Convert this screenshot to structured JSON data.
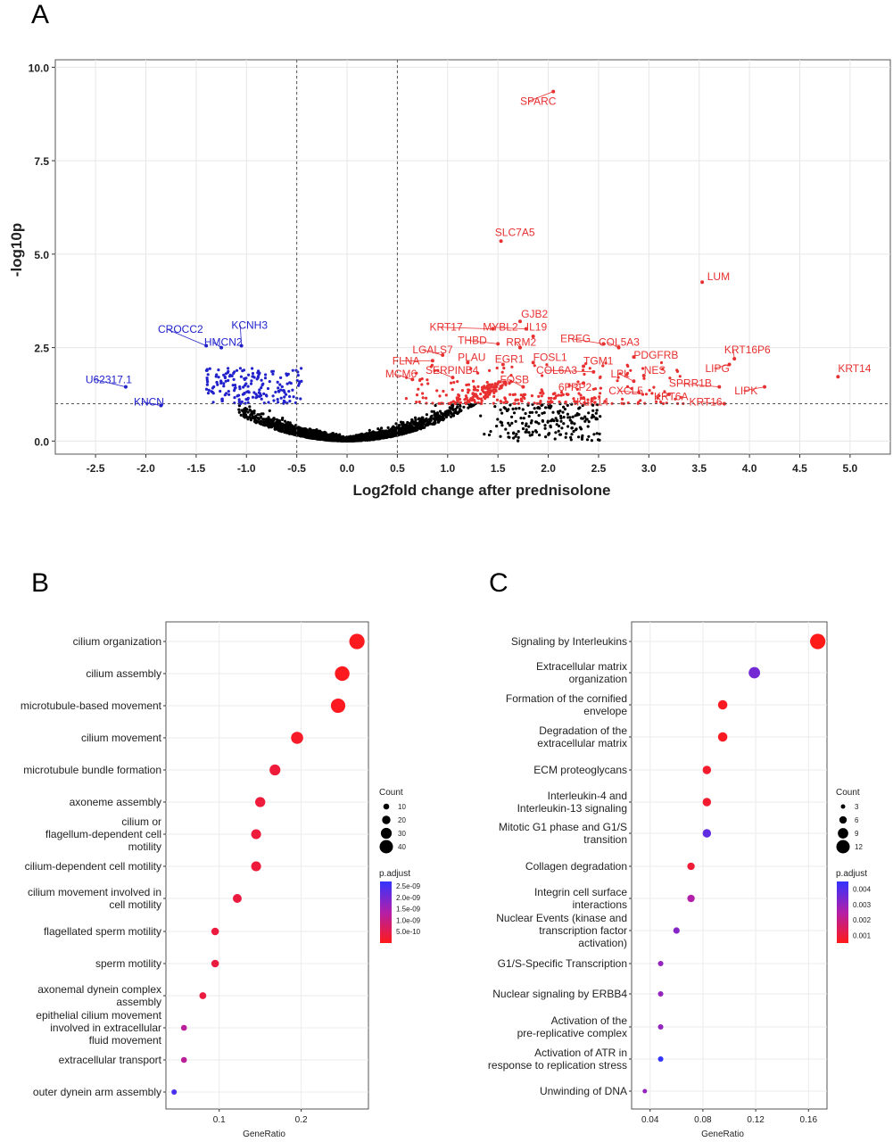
{
  "panels": [
    {
      "id": "A",
      "letter": "A"
    },
    {
      "id": "B",
      "letter": "B"
    },
    {
      "id": "C",
      "letter": "C"
    }
  ],
  "chart_data": [
    {
      "panel": "A",
      "type": "scatter",
      "title": "",
      "xlabel": "Log2fold change after prednisolone",
      "ylabel": "-log10p",
      "xlim": [
        -2.9,
        5.4
      ],
      "ylim": [
        -0.35,
        10.2
      ],
      "x_ticks": [
        "-2.5",
        "-2.0",
        "-1.5",
        "-1.0",
        "-0.5",
        "0.0",
        "0.5",
        "1.0",
        "1.5",
        "2.0",
        "2.5",
        "3.0",
        "3.5",
        "4.0",
        "4.5",
        "5.0"
      ],
      "y_ticks": [
        "0.0",
        "2.5",
        "5.0",
        "7.5",
        "10.0"
      ],
      "thresholds": {
        "x": [
          -0.5,
          0.5
        ],
        "y": 1.0
      },
      "grid": true,
      "colors": {
        "up": "#e83030",
        "down": "#2222cc",
        "ns": "#000000"
      },
      "labeled_genes": [
        {
          "label": "SPARC",
          "x": 2.05,
          "y": 9.35,
          "group": "up"
        },
        {
          "label": "SLC7A5",
          "x": 1.53,
          "y": 5.35,
          "group": "up"
        },
        {
          "label": "LUM",
          "x": 3.53,
          "y": 4.25,
          "group": "up"
        },
        {
          "label": "GJB2",
          "x": 1.72,
          "y": 3.2,
          "group": "up"
        },
        {
          "label": "KRT17",
          "x": 1.45,
          "y": 3.0,
          "group": "up"
        },
        {
          "label": "MYBL2",
          "x": 1.78,
          "y": 3.0,
          "group": "up"
        },
        {
          "label": "IL19",
          "x": 1.85,
          "y": 2.8,
          "group": "up"
        },
        {
          "label": "THBD",
          "x": 1.5,
          "y": 2.6,
          "group": "up"
        },
        {
          "label": "RRM2",
          "x": 1.72,
          "y": 2.5,
          "group": "up"
        },
        {
          "label": "EREG",
          "x": 2.55,
          "y": 2.6,
          "group": "up"
        },
        {
          "label": "COL5A3",
          "x": 2.7,
          "y": 2.5,
          "group": "up"
        },
        {
          "label": "KRT16P6",
          "x": 3.85,
          "y": 2.2,
          "group": "up"
        },
        {
          "label": "KRT14",
          "x": 4.88,
          "y": 1.72,
          "group": "up"
        },
        {
          "label": "LGALS7",
          "x": 0.95,
          "y": 2.3,
          "group": "up"
        },
        {
          "label": "FLNA",
          "x": 0.85,
          "y": 2.15,
          "group": "up"
        },
        {
          "label": "PLAU",
          "x": 1.2,
          "y": 2.1,
          "group": "up"
        },
        {
          "label": "EGR1",
          "x": 1.55,
          "y": 2.05,
          "group": "up"
        },
        {
          "label": "FOSL1",
          "x": 1.85,
          "y": 2.1,
          "group": "up"
        },
        {
          "label": "TGM1",
          "x": 2.35,
          "y": 2.0,
          "group": "up"
        },
        {
          "label": "PDGFRB",
          "x": 2.85,
          "y": 2.25,
          "group": "up"
        },
        {
          "label": "LIPG",
          "x": 3.8,
          "y": 2.05,
          "group": "up"
        },
        {
          "label": "MCM6",
          "x": 0.65,
          "y": 1.65,
          "group": "up"
        },
        {
          "label": "SERPINB4",
          "x": 1.05,
          "y": 1.7,
          "group": "up"
        },
        {
          "label": "COL6A3",
          "x": 2.45,
          "y": 1.85,
          "group": "up"
        },
        {
          "label": "NES",
          "x": 2.95,
          "y": 1.75,
          "group": "up"
        },
        {
          "label": "LPL",
          "x": 2.85,
          "y": 1.6,
          "group": "up"
        },
        {
          "label": "FOSB",
          "x": 1.75,
          "y": 1.45,
          "group": "up"
        },
        {
          "label": "SPRR1B",
          "x": 3.7,
          "y": 1.45,
          "group": "up"
        },
        {
          "label": "6FRP2",
          "x": 2.35,
          "y": 1.55,
          "group": "up"
        },
        {
          "label": "CXCL5",
          "x": 2.9,
          "y": 1.3,
          "group": "up"
        },
        {
          "label": "KRT6A",
          "x": 3.2,
          "y": 1.25,
          "group": "up"
        },
        {
          "label": "LIPK",
          "x": 4.15,
          "y": 1.45,
          "group": "up"
        },
        {
          "label": "KLK14",
          "x": 2.35,
          "y": 1.15,
          "group": "up"
        },
        {
          "label": "KRT16",
          "x": 3.75,
          "y": 1.0,
          "group": "up"
        },
        {
          "label": "CROCC2",
          "x": -1.4,
          "y": 2.55,
          "group": "down"
        },
        {
          "label": "KCNH3",
          "x": -1.05,
          "y": 2.55,
          "group": "down"
        },
        {
          "label": "HMCN2",
          "x": -1.25,
          "y": 2.5,
          "group": "down"
        },
        {
          "label": "U62317.1",
          "x": -2.2,
          "y": 1.45,
          "group": "down"
        },
        {
          "label": "KNCN",
          "x": -1.85,
          "y": 0.95,
          "group": "down"
        }
      ],
      "label_positions": [
        {
          "label": "SPARC",
          "x": 1.72,
          "y": 9.0
        },
        {
          "label": "SLC7A5",
          "x": 1.47,
          "y": 5.48
        },
        {
          "label": "LUM",
          "x": 3.58,
          "y": 4.3
        },
        {
          "label": "GJB2",
          "x": 1.73,
          "y": 3.3
        },
        {
          "label": "KRT17",
          "x": 0.82,
          "y": 2.95
        },
        {
          "label": "MYBL2",
          "x": 1.35,
          "y": 2.95
        },
        {
          "label": "IL19",
          "x": 1.78,
          "y": 2.95
        },
        {
          "label": "THBD",
          "x": 1.1,
          "y": 2.6
        },
        {
          "label": "RRM2",
          "x": 1.58,
          "y": 2.55
        },
        {
          "label": "EREG",
          "x": 2.12,
          "y": 2.65
        },
        {
          "label": "COL5A3",
          "x": 2.5,
          "y": 2.55
        },
        {
          "label": "KRT16P6",
          "x": 3.75,
          "y": 2.35
        },
        {
          "label": "KRT14",
          "x": 4.88,
          "y": 1.85
        },
        {
          "label": "LGALS7",
          "x": 0.65,
          "y": 2.35
        },
        {
          "label": "FLNA",
          "x": 0.45,
          "y": 2.05
        },
        {
          "label": "PLAU",
          "x": 1.1,
          "y": 2.15
        },
        {
          "label": "EGR1",
          "x": 1.47,
          "y": 2.1
        },
        {
          "label": "FOSL1",
          "x": 1.85,
          "y": 2.15
        },
        {
          "label": "TGM1",
          "x": 2.35,
          "y": 2.05
        },
        {
          "label": "PDGFRB",
          "x": 2.85,
          "y": 2.2
        },
        {
          "label": "LIPG",
          "x": 3.56,
          "y": 1.85
        },
        {
          "label": "MCM6",
          "x": 0.38,
          "y": 1.7
        },
        {
          "label": "SERPINB4",
          "x": 0.78,
          "y": 1.8
        },
        {
          "label": "COL6A3",
          "x": 1.88,
          "y": 1.8
        },
        {
          "label": "NES",
          "x": 2.95,
          "y": 1.8
        },
        {
          "label": "LPL",
          "x": 2.62,
          "y": 1.7
        },
        {
          "label": "FOSB",
          "x": 1.52,
          "y": 1.55
        },
        {
          "label": "SPRR1B",
          "x": 3.2,
          "y": 1.45
        },
        {
          "label": "6FRP2",
          "x": 2.1,
          "y": 1.35
        },
        {
          "label": "CXCL5",
          "x": 2.6,
          "y": 1.25
        },
        {
          "label": "KRT6A",
          "x": 3.05,
          "y": 1.1
        },
        {
          "label": "LIPK",
          "x": 3.85,
          "y": 1.25
        },
        {
          "label": "KLK14",
          "x": 2.28,
          "y": 0.95
        },
        {
          "label": "KRT16",
          "x": 3.4,
          "y": 0.95
        },
        {
          "label": "CROCC2",
          "x": -1.88,
          "y": 2.9
        },
        {
          "label": "KCNH3",
          "x": -1.15,
          "y": 3.0
        },
        {
          "label": "HMCN2",
          "x": -1.42,
          "y": 2.55
        },
        {
          "label": "U62317.1",
          "x": -2.6,
          "y": 1.55
        },
        {
          "label": "KNCN",
          "x": -2.12,
          "y": 0.95
        }
      ]
    },
    {
      "panel": "B",
      "type": "scatter",
      "subtype": "dotplot",
      "xlabel": "GeneRatio",
      "ylabel": "",
      "xlim": [
        0.035,
        0.282
      ],
      "x_ticks": [
        0.1,
        0.2
      ],
      "x_tick_labels": [
        "0.1",
        "0.2"
      ],
      "categories": [
        [
          "cilium organization"
        ],
        [
          "cilium assembly"
        ],
        [
          "microtubule-based movement"
        ],
        [
          "cilium movement"
        ],
        [
          "microtubule bundle formation"
        ],
        [
          "axoneme assembly"
        ],
        [
          "cilium or",
          "flagellum-dependent cell",
          "motility"
        ],
        [
          "cilium-dependent cell motility"
        ],
        [
          "cilium movement involved in",
          "cell motility"
        ],
        [
          "flagellated sperm motility"
        ],
        [
          "sperm motility"
        ],
        [
          "axonemal dynein complex",
          "assembly"
        ],
        [
          "epithelial cilium movement",
          "involved in extracellular",
          "fluid movement"
        ],
        [
          "extracellular transport"
        ],
        [
          "outer dynein arm assembly"
        ]
      ],
      "x": [
        0.268,
        0.25,
        0.245,
        0.195,
        0.168,
        0.15,
        0.145,
        0.145,
        0.122,
        0.095,
        0.095,
        0.08,
        0.057,
        0.057,
        0.045
      ],
      "count": [
        48,
        45,
        44,
        35,
        30,
        27,
        26,
        26,
        22,
        17,
        17,
        14,
        10,
        10,
        8
      ],
      "p_adjust": [
        4e-11,
        5e-11,
        6e-11,
        1.5e-10,
        3e-10,
        3e-10,
        3e-10,
        3e-10,
        3.5e-10,
        3.5e-10,
        3.5e-10,
        3.5e-10,
        1.2e-09,
        1.2e-09,
        2.5e-09
      ],
      "legend_count": {
        "title": "Count",
        "values": [
          10,
          20,
          30,
          40
        ],
        "labels": [
          "10",
          "20",
          "30",
          "40"
        ]
      },
      "legend_padjust": {
        "title": "p.adjust",
        "min": 0,
        "max": 2.7e-09,
        "ticks": [
          5e-10,
          1e-09,
          1.5e-09,
          2e-09,
          2.5e-09
        ],
        "labels": [
          "5.0e-10",
          "1.0e-09",
          "1.5e-09",
          "2.0e-09",
          "2.5e-09"
        ]
      },
      "color_low": "#ff1a1a",
      "color_high": "#3333ff"
    },
    {
      "panel": "C",
      "type": "scatter",
      "subtype": "dotplot",
      "xlabel": "GeneRatio",
      "ylabel": "",
      "xlim": [
        0.026,
        0.174
      ],
      "x_ticks": [
        0.04,
        0.08,
        0.12,
        0.16
      ],
      "x_tick_labels": [
        "0.04",
        "0.08",
        "0.12",
        "0.16"
      ],
      "categories": [
        [
          "Signaling by Interleukins"
        ],
        [
          "Extracellular matrix",
          "organization"
        ],
        [
          "Formation of the cornified",
          "envelope"
        ],
        [
          "Degradation of the",
          "extracellular matrix"
        ],
        [
          "ECM proteoglycans"
        ],
        [
          "Interleukin-4 and",
          "Interleukin-13 signaling"
        ],
        [
          "Mitotic G1 phase and G1/S",
          "transition"
        ],
        [
          "Collagen degradation"
        ],
        [
          "Integrin cell surface",
          "interactions"
        ],
        [
          "Nuclear Events (kinase and",
          "transcription factor",
          "activation)"
        ],
        [
          "G1/S-Specific Transcription"
        ],
        [
          "Nuclear signaling by ERBB4"
        ],
        [
          "Activation of the",
          "pre-replicative complex"
        ],
        [
          "Activation of ATR in",
          "response to replication stress"
        ],
        [
          "Unwinding of DNA"
        ]
      ],
      "x": [
        0.167,
        0.119,
        0.095,
        0.095,
        0.083,
        0.083,
        0.083,
        0.071,
        0.071,
        0.06,
        0.048,
        0.048,
        0.048,
        0.048,
        0.036
      ],
      "count": [
        14,
        10,
        8,
        8,
        7,
        7,
        7,
        6,
        6,
        5,
        4,
        4,
        4,
        4,
        3
      ],
      "p_adjust": [
        0.0003,
        0.0035,
        0.0006,
        0.0006,
        0.0008,
        0.0008,
        0.0038,
        0.0009,
        0.0025,
        0.0032,
        0.003,
        0.003,
        0.003,
        0.0045,
        0.003
      ],
      "legend_count": {
        "title": "Count",
        "values": [
          3,
          6,
          9,
          12
        ],
        "labels": [
          "3",
          "6",
          "9",
          "12"
        ]
      },
      "legend_padjust": {
        "title": "p.adjust",
        "min": 0.0005,
        "max": 0.0045,
        "ticks": [
          0.001,
          0.002,
          0.003,
          0.004
        ],
        "labels": [
          "0.001",
          "0.002",
          "0.003",
          "0.004"
        ]
      },
      "color_low": "#ff1a1a",
      "color_high": "#3333ff"
    }
  ]
}
